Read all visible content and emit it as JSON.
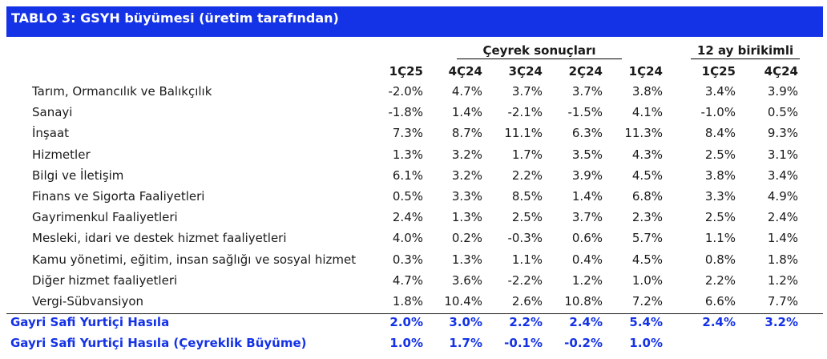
{
  "title": "TABLO 3: GSYH büyümesi (üretim tarafından)",
  "groups": {
    "quarterly": "Çeyrek sonuçları",
    "annual": "12 ay birikimli"
  },
  "columns": [
    "1Ç25",
    "4Ç24",
    "3Ç24",
    "2Ç24",
    "1Ç24",
    "1Ç25",
    "4Ç24"
  ],
  "rows": [
    {
      "label": "Tarım, Ormancılık ve Balıkçılık",
      "values": [
        "-2.0%",
        "4.7%",
        "3.7%",
        "3.7%",
        "3.8%",
        "3.4%",
        "3.9%"
      ]
    },
    {
      "label": "Sanayi",
      "values": [
        "-1.8%",
        "1.4%",
        "-2.1%",
        "-1.5%",
        "4.1%",
        "-1.0%",
        "0.5%"
      ]
    },
    {
      "label": "İnşaat",
      "values": [
        "7.3%",
        "8.7%",
        "11.1%",
        "6.3%",
        "11.3%",
        "8.4%",
        "9.3%"
      ]
    },
    {
      "label": "Hizmetler",
      "values": [
        "1.3%",
        "3.2%",
        "1.7%",
        "3.5%",
        "4.3%",
        "2.5%",
        "3.1%"
      ]
    },
    {
      "label": "Bilgi ve İletişim",
      "values": [
        "6.1%",
        "3.2%",
        "2.2%",
        "3.9%",
        "4.5%",
        "3.8%",
        "3.4%"
      ]
    },
    {
      "label": "Finans ve Sigorta Faaliyetleri",
      "values": [
        "0.5%",
        "3.3%",
        "8.5%",
        "1.4%",
        "6.8%",
        "3.3%",
        "4.9%"
      ]
    },
    {
      "label": "Gayrimenkul Faaliyetleri",
      "values": [
        "2.4%",
        "1.3%",
        "2.5%",
        "3.7%",
        "2.3%",
        "2.5%",
        "2.4%"
      ]
    },
    {
      "label": "Mesleki, idari ve destek hizmet faaliyetleri",
      "values": [
        "4.0%",
        "0.2%",
        "-0.3%",
        "0.6%",
        "5.7%",
        "1.1%",
        "1.4%"
      ]
    },
    {
      "label": "Kamu yönetimi, eğitim, insan sağlığı ve sosyal hizmet",
      "values": [
        "0.3%",
        "1.3%",
        "1.1%",
        "0.4%",
        "4.5%",
        "0.8%",
        "1.8%"
      ]
    },
    {
      "label": "Diğer hizmet faaliyetleri",
      "values": [
        "4.7%",
        "3.6%",
        "-2.2%",
        "1.2%",
        "1.0%",
        "2.2%",
        "1.2%"
      ]
    },
    {
      "label": "Vergi-Sübvansiyon",
      "values": [
        "1.8%",
        "10.4%",
        "2.6%",
        "10.8%",
        "7.2%",
        "6.6%",
        "7.7%"
      ]
    }
  ],
  "totals": [
    {
      "label": "Gayri Safi Yurtiçi Hasıla",
      "values": [
        "2.0%",
        "3.0%",
        "2.2%",
        "2.4%",
        "5.4%",
        "2.4%",
        "3.2%"
      ]
    },
    {
      "label": "Gayri Safi Yurtiçi Hasıla (Çeyreklik Büyüme)",
      "values": [
        "1.0%",
        "1.7%",
        "-0.1%",
        "-0.2%",
        "1.0%",
        "",
        ""
      ]
    }
  ],
  "colors": {
    "accent": "#1432e6",
    "text": "#1a1a1a"
  }
}
